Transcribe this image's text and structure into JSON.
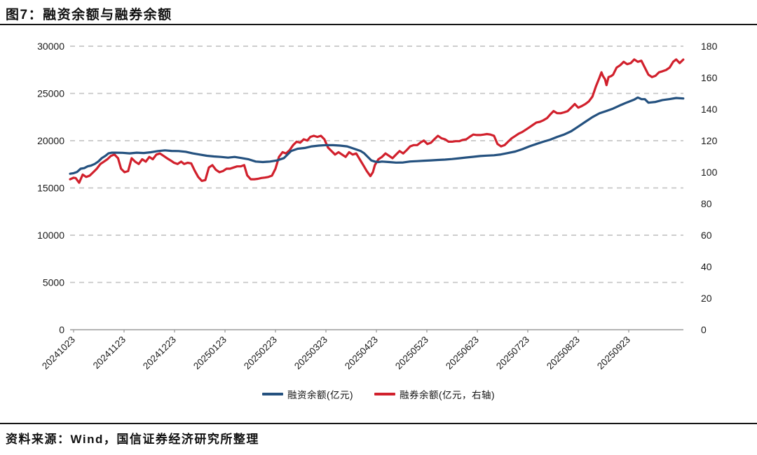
{
  "page": {
    "title": "图7：融资余额与融券余额",
    "source_note": "资料来源：Wind，国信证券经济研究所整理"
  },
  "chart_data": {
    "type": "line",
    "title": "融资余额与融券余额",
    "x_unit": "months_since_first_tick (tick dates YYYYMMDD)",
    "x_axis": {
      "tick_labels": [
        "20241023",
        "20241123",
        "20241223",
        "20250123",
        "20250223",
        "20250323",
        "20250423",
        "20250523",
        "20250623",
        "20250723",
        "20250823",
        "20250923"
      ]
    },
    "y_axis_left": {
      "range": [
        0,
        30000
      ],
      "ticks": [
        0,
        5000,
        10000,
        15000,
        20000,
        25000,
        30000
      ],
      "unit": "亿元"
    },
    "y_axis_right": {
      "range": [
        0,
        180
      ],
      "ticks": [
        0,
        20,
        40,
        60,
        80,
        100,
        120,
        140,
        160,
        180
      ],
      "unit": "亿元"
    },
    "grid": "dashed horizontal gridlines at left-axis ticks",
    "legend_position": "bottom-center",
    "axis_color": "#9b9b9b",
    "grid_color": "#c6c6c6",
    "series": [
      {
        "name": "融资余额(亿元)",
        "axis": "left",
        "color": "#24517f",
        "points": [
          [
            -0.07,
            16500
          ],
          [
            0,
            16560
          ],
          [
            0.07,
            16700
          ],
          [
            0.14,
            17040
          ],
          [
            0.21,
            17100
          ],
          [
            0.28,
            17290
          ],
          [
            0.35,
            17380
          ],
          [
            0.42,
            17540
          ],
          [
            0.49,
            17800
          ],
          [
            0.56,
            18160
          ],
          [
            0.63,
            18400
          ],
          [
            0.69,
            18660
          ],
          [
            0.76,
            18730
          ],
          [
            0.83,
            18730
          ],
          [
            0.97,
            18720
          ],
          [
            1.11,
            18660
          ],
          [
            1.25,
            18730
          ],
          [
            1.39,
            18700
          ],
          [
            1.53,
            18780
          ],
          [
            1.67,
            18905
          ],
          [
            1.81,
            18980
          ],
          [
            1.94,
            18920
          ],
          [
            2.08,
            18905
          ],
          [
            2.22,
            18830
          ],
          [
            2.36,
            18660
          ],
          [
            2.5,
            18530
          ],
          [
            2.64,
            18410
          ],
          [
            2.78,
            18330
          ],
          [
            2.92,
            18280
          ],
          [
            3.06,
            18210
          ],
          [
            3.19,
            18280
          ],
          [
            3.33,
            18160
          ],
          [
            3.47,
            18030
          ],
          [
            3.61,
            17790
          ],
          [
            3.75,
            17740
          ],
          [
            3.89,
            17790
          ],
          [
            4.03,
            17910
          ],
          [
            4.17,
            18160
          ],
          [
            4.31,
            18905
          ],
          [
            4.44,
            19150
          ],
          [
            4.58,
            19230
          ],
          [
            4.72,
            19400
          ],
          [
            4.86,
            19480
          ],
          [
            5,
            19530
          ],
          [
            5.14,
            19525
          ],
          [
            5.28,
            19480
          ],
          [
            5.42,
            19400
          ],
          [
            5.56,
            19150
          ],
          [
            5.69,
            18905
          ],
          [
            5.76,
            18660
          ],
          [
            5.83,
            18280
          ],
          [
            5.9,
            17910
          ],
          [
            5.97,
            17790
          ],
          [
            6.04,
            17740
          ],
          [
            6.11,
            17790
          ],
          [
            6.25,
            17740
          ],
          [
            6.39,
            17680
          ],
          [
            6.53,
            17700
          ],
          [
            6.67,
            17800
          ],
          [
            6.81,
            17840
          ],
          [
            6.94,
            17880
          ],
          [
            7.08,
            17920
          ],
          [
            7.22,
            17960
          ],
          [
            7.36,
            18000
          ],
          [
            7.5,
            18060
          ],
          [
            7.64,
            18140
          ],
          [
            7.78,
            18220
          ],
          [
            7.92,
            18300
          ],
          [
            8.06,
            18380
          ],
          [
            8.19,
            18420
          ],
          [
            8.33,
            18460
          ],
          [
            8.47,
            18550
          ],
          [
            8.61,
            18700
          ],
          [
            8.75,
            18850
          ],
          [
            8.89,
            19100
          ],
          [
            9.03,
            19400
          ],
          [
            9.17,
            19650
          ],
          [
            9.31,
            19900
          ],
          [
            9.44,
            20100
          ],
          [
            9.58,
            20400
          ],
          [
            9.72,
            20650
          ],
          [
            9.86,
            21000
          ],
          [
            10,
            21500
          ],
          [
            10.14,
            22000
          ],
          [
            10.28,
            22500
          ],
          [
            10.42,
            22900
          ],
          [
            10.56,
            23150
          ],
          [
            10.69,
            23400
          ],
          [
            10.83,
            23750
          ],
          [
            10.97,
            24060
          ],
          [
            11.11,
            24350
          ],
          [
            11.18,
            24570
          ],
          [
            11.25,
            24400
          ],
          [
            11.32,
            24390
          ],
          [
            11.39,
            24020
          ],
          [
            11.53,
            24100
          ],
          [
            11.67,
            24300
          ],
          [
            11.81,
            24400
          ],
          [
            11.94,
            24520
          ],
          [
            12.08,
            24470
          ]
        ]
      },
      {
        "name": "融券余额(亿元，右轴)",
        "axis": "right",
        "color": "#d1202c",
        "points": [
          [
            -0.07,
            95.5
          ],
          [
            0,
            96.5
          ],
          [
            0.04,
            96.3
          ],
          [
            0.11,
            93.3
          ],
          [
            0.18,
            98.5
          ],
          [
            0.25,
            97
          ],
          [
            0.32,
            97.8
          ],
          [
            0.39,
            100
          ],
          [
            0.46,
            102.2
          ],
          [
            0.53,
            105.2
          ],
          [
            0.6,
            106.7
          ],
          [
            0.67,
            108.2
          ],
          [
            0.74,
            110.4
          ],
          [
            0.81,
            111.2
          ],
          [
            0.88,
            108.9
          ],
          [
            0.94,
            102.2
          ],
          [
            1.01,
            100
          ],
          [
            1.08,
            100.7
          ],
          [
            1.15,
            108.9
          ],
          [
            1.22,
            106.7
          ],
          [
            1.29,
            105.2
          ],
          [
            1.36,
            108.2
          ],
          [
            1.43,
            106.7
          ],
          [
            1.5,
            109.7
          ],
          [
            1.57,
            108.2
          ],
          [
            1.64,
            111.2
          ],
          [
            1.71,
            111.9
          ],
          [
            1.78,
            110.4
          ],
          [
            1.85,
            108.9
          ],
          [
            1.92,
            107.5
          ],
          [
            1.99,
            106
          ],
          [
            2.06,
            105.2
          ],
          [
            2.13,
            106.7
          ],
          [
            2.19,
            105.2
          ],
          [
            2.26,
            106
          ],
          [
            2.33,
            105.6
          ],
          [
            2.4,
            101
          ],
          [
            2.47,
            97
          ],
          [
            2.54,
            94.5
          ],
          [
            2.61,
            95
          ],
          [
            2.68,
            103
          ],
          [
            2.75,
            104.5
          ],
          [
            2.82,
            101.5
          ],
          [
            2.89,
            100
          ],
          [
            2.96,
            100.7
          ],
          [
            3.03,
            102.2
          ],
          [
            3.1,
            102.2
          ],
          [
            3.17,
            103
          ],
          [
            3.24,
            103.7
          ],
          [
            3.31,
            103.7
          ],
          [
            3.38,
            104.5
          ],
          [
            3.44,
            98
          ],
          [
            3.51,
            95.5
          ],
          [
            3.58,
            95.5
          ],
          [
            3.65,
            95.8
          ],
          [
            3.72,
            96.3
          ],
          [
            3.79,
            96.6
          ],
          [
            3.86,
            97
          ],
          [
            3.93,
            97.8
          ],
          [
            4,
            102.2
          ],
          [
            4.07,
            109.7
          ],
          [
            4.14,
            112.7
          ],
          [
            4.21,
            111.9
          ],
          [
            4.28,
            114
          ],
          [
            4.35,
            117.2
          ],
          [
            4.42,
            119.4
          ],
          [
            4.49,
            118.7
          ],
          [
            4.56,
            120.9
          ],
          [
            4.63,
            120.1
          ],
          [
            4.69,
            122.4
          ],
          [
            4.76,
            123.1
          ],
          [
            4.83,
            122.4
          ],
          [
            4.9,
            123.1
          ],
          [
            4.97,
            120.9
          ],
          [
            5.04,
            115.7
          ],
          [
            5.11,
            113.4
          ],
          [
            5.18,
            111.2
          ],
          [
            5.25,
            112.7
          ],
          [
            5.32,
            111.2
          ],
          [
            5.39,
            109.7
          ],
          [
            5.46,
            112.7
          ],
          [
            5.53,
            111.2
          ],
          [
            5.6,
            111.9
          ],
          [
            5.67,
            108.2
          ],
          [
            5.74,
            104.5
          ],
          [
            5.81,
            100.7
          ],
          [
            5.88,
            97.5
          ],
          [
            5.93,
            100
          ],
          [
            5.97,
            104.5
          ],
          [
            6.04,
            108.2
          ],
          [
            6.11,
            109.7
          ],
          [
            6.18,
            111.9
          ],
          [
            6.25,
            110.4
          ],
          [
            6.32,
            108.9
          ],
          [
            6.39,
            111.2
          ],
          [
            6.46,
            113.4
          ],
          [
            6.53,
            111.9
          ],
          [
            6.6,
            114
          ],
          [
            6.67,
            116.4
          ],
          [
            6.74,
            117.2
          ],
          [
            6.81,
            117.2
          ],
          [
            6.88,
            119
          ],
          [
            6.94,
            120.1
          ],
          [
            7.01,
            117.9
          ],
          [
            7.08,
            118.7
          ],
          [
            7.15,
            121
          ],
          [
            7.22,
            123.1
          ],
          [
            7.29,
            121.5
          ],
          [
            7.36,
            120.9
          ],
          [
            7.43,
            119.4
          ],
          [
            7.5,
            119.4
          ],
          [
            7.57,
            119.7
          ],
          [
            7.64,
            119.7
          ],
          [
            7.71,
            120.5
          ],
          [
            7.78,
            120.9
          ],
          [
            7.85,
            122.5
          ],
          [
            7.92,
            123.9
          ],
          [
            7.99,
            123.6
          ],
          [
            8.06,
            123.6
          ],
          [
            8.13,
            123.9
          ],
          [
            8.19,
            124.2
          ],
          [
            8.26,
            123.9
          ],
          [
            8.33,
            123.1
          ],
          [
            8.4,
            117.9
          ],
          [
            8.47,
            116.4
          ],
          [
            8.54,
            117.2
          ],
          [
            8.61,
            119.4
          ],
          [
            8.68,
            121.5
          ],
          [
            8.75,
            123
          ],
          [
            8.82,
            124.5
          ],
          [
            8.89,
            125.5
          ],
          [
            8.96,
            127
          ],
          [
            9.03,
            128.5
          ],
          [
            9.1,
            130
          ],
          [
            9.17,
            131.5
          ],
          [
            9.24,
            132
          ],
          [
            9.31,
            133
          ],
          [
            9.38,
            134.3
          ],
          [
            9.44,
            136.5
          ],
          [
            9.51,
            138.8
          ],
          [
            9.58,
            137.5
          ],
          [
            9.65,
            137.4
          ],
          [
            9.72,
            138
          ],
          [
            9.79,
            138.8
          ],
          [
            9.86,
            141
          ],
          [
            9.93,
            143.3
          ],
          [
            10,
            141
          ],
          [
            10.07,
            142
          ],
          [
            10.14,
            143.3
          ],
          [
            10.21,
            145
          ],
          [
            10.28,
            148
          ],
          [
            10.35,
            154.5
          ],
          [
            10.42,
            160
          ],
          [
            10.46,
            163.4
          ],
          [
            10.49,
            161
          ],
          [
            10.53,
            159
          ],
          [
            10.56,
            155.3
          ],
          [
            10.6,
            160.4
          ],
          [
            10.65,
            161
          ],
          [
            10.69,
            161.9
          ],
          [
            10.76,
            166.4
          ],
          [
            10.83,
            167.9
          ],
          [
            10.9,
            170.1
          ],
          [
            10.97,
            168.6
          ],
          [
            11.04,
            169.3
          ],
          [
            11.11,
            171.6
          ],
          [
            11.18,
            170.1
          ],
          [
            11.25,
            170.8
          ],
          [
            11.32,
            166.4
          ],
          [
            11.39,
            161.9
          ],
          [
            11.46,
            160.4
          ],
          [
            11.53,
            161.2
          ],
          [
            11.6,
            163.4
          ],
          [
            11.67,
            164.1
          ],
          [
            11.74,
            164.9
          ],
          [
            11.81,
            166.4
          ],
          [
            11.88,
            170.1
          ],
          [
            11.94,
            171.6
          ],
          [
            12.01,
            169.3
          ],
          [
            12.08,
            171.5
          ]
        ]
      }
    ]
  }
}
